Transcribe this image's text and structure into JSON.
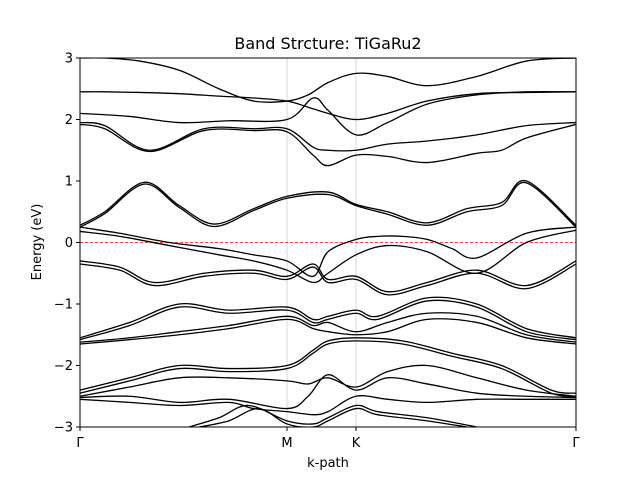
{
  "chart_data": {
    "type": "line",
    "title": "Band Strcture: TiGaRu2",
    "xlabel": "k-path",
    "ylabel": "Energy (eV)",
    "ylim": [
      -3,
      3
    ],
    "xlim": [
      0,
      1
    ],
    "yticks": [
      "−3",
      "−2",
      "−1",
      "0",
      "1",
      "2",
      "3"
    ],
    "ytick_values": [
      -3,
      -2,
      -1,
      0,
      1,
      2,
      3
    ],
    "kpoints": [
      {
        "label": "Γ",
        "x": 0.0
      },
      {
        "label": "M",
        "x": 0.4173
      },
      {
        "label": "K",
        "x": 0.5565
      },
      {
        "label": "Γ",
        "x": 1.0
      }
    ],
    "fermi_level": 0,
    "fermi_color": "#ff0000",
    "line_color": "#000000",
    "grid": "vertical lines at high-symmetry points",
    "series": [
      {
        "x": [
          0,
          0.05,
          0.12,
          0.2,
          0.28,
          0.35,
          0.4173,
          0.46,
          0.5,
          0.5565,
          0.62,
          0.7,
          0.8,
          0.9,
          1.0
        ],
        "values": [
          3.0,
          3.0,
          2.95,
          2.8,
          2.5,
          2.3,
          2.3,
          2.4,
          2.6,
          2.75,
          2.7,
          2.55,
          2.7,
          2.95,
          3.0
        ]
      },
      {
        "x": [
          0,
          0.05,
          0.12,
          0.2,
          0.28,
          0.35,
          0.4173,
          0.46,
          0.5,
          0.5565,
          0.62,
          0.7,
          0.8,
          0.9,
          1.0
        ],
        "values": [
          2.45,
          2.45,
          2.44,
          2.42,
          2.38,
          2.35,
          2.3,
          2.2,
          2.1,
          2.0,
          2.1,
          2.3,
          2.42,
          2.44,
          2.45
        ]
      },
      {
        "x": [
          0,
          0.1,
          0.2,
          0.3,
          0.4173,
          0.47,
          0.5,
          0.5565,
          0.62,
          0.7,
          0.8,
          0.9,
          1.0
        ],
        "values": [
          2.1,
          2.05,
          1.95,
          1.98,
          2.0,
          2.35,
          2.15,
          1.75,
          1.95,
          2.25,
          2.4,
          2.45,
          2.45
        ]
      },
      {
        "x": [
          0,
          0.05,
          0.14,
          0.25,
          0.35,
          0.4173,
          0.47,
          0.5,
          0.5565,
          0.62,
          0.7,
          0.8,
          0.9,
          1.0
        ],
        "values": [
          1.95,
          1.9,
          1.5,
          1.85,
          1.85,
          1.85,
          1.55,
          1.5,
          1.5,
          1.6,
          1.65,
          1.75,
          1.9,
          1.95
        ]
      },
      {
        "x": [
          0,
          0.05,
          0.14,
          0.25,
          0.35,
          0.4173,
          0.47,
          0.5,
          0.5565,
          0.62,
          0.7,
          0.8,
          0.85,
          0.9,
          1.0
        ],
        "values": [
          1.92,
          1.85,
          1.48,
          1.82,
          1.82,
          1.8,
          1.42,
          1.25,
          1.42,
          1.4,
          1.3,
          1.45,
          1.5,
          1.7,
          1.92
        ]
      },
      {
        "x": [
          0,
          0.05,
          0.13,
          0.2,
          0.27,
          0.35,
          0.4173,
          0.5,
          0.5565,
          0.62,
          0.7,
          0.78,
          0.85,
          0.9,
          1.0
        ],
        "values": [
          0.28,
          0.5,
          0.98,
          0.6,
          0.3,
          0.55,
          0.75,
          0.82,
          0.62,
          0.5,
          0.32,
          0.55,
          0.65,
          1.0,
          0.28
        ]
      },
      {
        "x": [
          0,
          0.05,
          0.13,
          0.2,
          0.27,
          0.35,
          0.4173,
          0.5,
          0.5565,
          0.62,
          0.7,
          0.78,
          0.85,
          0.9,
          1.0
        ],
        "values": [
          0.25,
          0.47,
          0.95,
          0.57,
          0.26,
          0.52,
          0.72,
          0.78,
          0.6,
          0.46,
          0.28,
          0.5,
          0.6,
          0.97,
          0.25
        ]
      },
      {
        "x": [
          0,
          0.08,
          0.18,
          0.28,
          0.35,
          0.4173,
          0.47,
          0.5,
          0.5565,
          0.6,
          0.65,
          0.7,
          0.75,
          0.8,
          0.9,
          1.0
        ],
        "values": [
          0.25,
          0.15,
          0.0,
          -0.1,
          -0.2,
          -0.3,
          -0.55,
          -0.15,
          0.05,
          0.1,
          0.1,
          0.05,
          -0.1,
          -0.25,
          0.15,
          0.25
        ]
      },
      {
        "x": [
          0,
          0.08,
          0.18,
          0.28,
          0.35,
          0.4173,
          0.47,
          0.5,
          0.5565,
          0.62,
          0.7,
          0.8,
          0.9,
          1.0
        ],
        "values": [
          0.18,
          0.1,
          -0.05,
          -0.2,
          -0.3,
          -0.45,
          -0.65,
          -0.5,
          -0.2,
          -0.05,
          -0.15,
          -0.5,
          0.0,
          0.2
        ]
      },
      {
        "x": [
          0,
          0.08,
          0.15,
          0.25,
          0.35,
          0.4173,
          0.47,
          0.5,
          0.5565,
          0.62,
          0.7,
          0.8,
          0.9,
          1.0
        ],
        "values": [
          -0.3,
          -0.4,
          -0.65,
          -0.5,
          -0.45,
          -0.55,
          -0.35,
          -0.6,
          -0.55,
          -0.8,
          -0.65,
          -0.45,
          -0.7,
          -0.3
        ]
      },
      {
        "x": [
          0,
          0.08,
          0.15,
          0.25,
          0.35,
          0.4173,
          0.47,
          0.5,
          0.5565,
          0.62,
          0.7,
          0.8,
          0.9,
          1.0
        ],
        "values": [
          -0.35,
          -0.45,
          -0.7,
          -0.55,
          -0.5,
          -0.6,
          -0.4,
          -0.65,
          -0.6,
          -0.85,
          -0.7,
          -0.5,
          -0.75,
          -0.35
        ]
      },
      {
        "x": [
          0,
          0.1,
          0.2,
          0.3,
          0.4173,
          0.47,
          0.5,
          0.5565,
          0.6,
          0.7,
          0.8,
          0.9,
          1.0
        ],
        "values": [
          -1.55,
          -1.3,
          -1.0,
          -1.1,
          -1.05,
          -1.25,
          -1.2,
          -1.1,
          -1.2,
          -0.9,
          -1.0,
          -1.4,
          -1.55
        ]
      },
      {
        "x": [
          0,
          0.1,
          0.2,
          0.3,
          0.4173,
          0.47,
          0.5,
          0.5565,
          0.6,
          0.7,
          0.8,
          0.9,
          1.0
        ],
        "values": [
          -1.58,
          -1.35,
          -1.05,
          -1.15,
          -1.1,
          -1.3,
          -1.25,
          -1.15,
          -1.25,
          -0.95,
          -1.05,
          -1.45,
          -1.58
        ]
      },
      {
        "x": [
          0,
          0.1,
          0.2,
          0.3,
          0.4173,
          0.47,
          0.5,
          0.5565,
          0.62,
          0.7,
          0.8,
          0.9,
          1.0
        ],
        "values": [
          -1.62,
          -1.55,
          -1.45,
          -1.35,
          -1.2,
          -1.35,
          -1.3,
          -1.45,
          -1.3,
          -1.15,
          -1.2,
          -1.5,
          -1.62
        ]
      },
      {
        "x": [
          0,
          0.1,
          0.2,
          0.3,
          0.4173,
          0.47,
          0.5,
          0.5565,
          0.62,
          0.7,
          0.8,
          0.9,
          1.0
        ],
        "values": [
          -1.65,
          -1.58,
          -1.5,
          -1.4,
          -1.25,
          -1.4,
          -1.45,
          -1.5,
          -1.45,
          -1.25,
          -1.3,
          -1.55,
          -1.65
        ]
      },
      {
        "x": [
          0,
          0.1,
          0.2,
          0.3,
          0.4173,
          0.47,
          0.5,
          0.5565,
          0.65,
          0.75,
          0.85,
          0.95,
          1.0
        ],
        "values": [
          -2.4,
          -2.2,
          -2.0,
          -2.05,
          -2.0,
          -1.75,
          -1.6,
          -1.55,
          -1.6,
          -1.8,
          -2.0,
          -2.4,
          -2.45
        ]
      },
      {
        "x": [
          0,
          0.1,
          0.2,
          0.3,
          0.4173,
          0.47,
          0.5,
          0.5565,
          0.65,
          0.75,
          0.85,
          0.95,
          1.0
        ],
        "values": [
          -2.45,
          -2.25,
          -2.05,
          -2.1,
          -2.05,
          -1.8,
          -1.65,
          -1.6,
          -1.65,
          -1.85,
          -2.05,
          -2.45,
          -2.5
        ]
      },
      {
        "x": [
          0,
          0.1,
          0.2,
          0.3,
          0.4173,
          0.46,
          0.5,
          0.5565,
          0.62,
          0.7,
          0.8,
          0.9,
          1.0
        ],
        "values": [
          -2.5,
          -2.35,
          -2.2,
          -2.2,
          -2.25,
          -2.3,
          -2.2,
          -2.35,
          -2.1,
          -2.0,
          -2.2,
          -2.4,
          -2.5
        ]
      },
      {
        "x": [
          0,
          0.1,
          0.2,
          0.3,
          0.4173,
          0.46,
          0.5,
          0.5565,
          0.62,
          0.7,
          0.8,
          0.9,
          1.0
        ],
        "values": [
          -2.52,
          -2.5,
          -2.6,
          -2.55,
          -2.7,
          -2.5,
          -2.15,
          -2.4,
          -2.2,
          -2.3,
          -2.45,
          -2.5,
          -2.52
        ]
      },
      {
        "x": [
          0,
          0.1,
          0.2,
          0.3,
          0.35,
          0.4173,
          0.47,
          0.5,
          0.5565,
          0.62,
          0.7,
          0.8,
          0.9,
          1.0
        ],
        "values": [
          -2.55,
          -2.6,
          -2.65,
          -2.6,
          -2.7,
          -2.75,
          -2.8,
          -2.75,
          -2.5,
          -2.55,
          -2.6,
          -2.55,
          -2.55,
          -2.55
        ]
      },
      {
        "x": [
          0.22,
          0.28,
          0.34,
          0.4173,
          0.47,
          0.5,
          0.5565,
          0.6,
          0.7,
          0.8
        ],
        "values": [
          -3.0,
          -2.85,
          -2.65,
          -2.9,
          -2.95,
          -2.85,
          -2.65,
          -2.75,
          -2.85,
          -3.0
        ]
      },
      {
        "x": [
          0.24,
          0.3,
          0.36,
          0.4173,
          0.47,
          0.5,
          0.5565,
          0.6,
          0.7,
          0.78
        ],
        "values": [
          -3.0,
          -2.9,
          -2.7,
          -2.95,
          -3.0,
          -2.9,
          -2.7,
          -2.8,
          -2.9,
          -3.0
        ]
      }
    ]
  }
}
